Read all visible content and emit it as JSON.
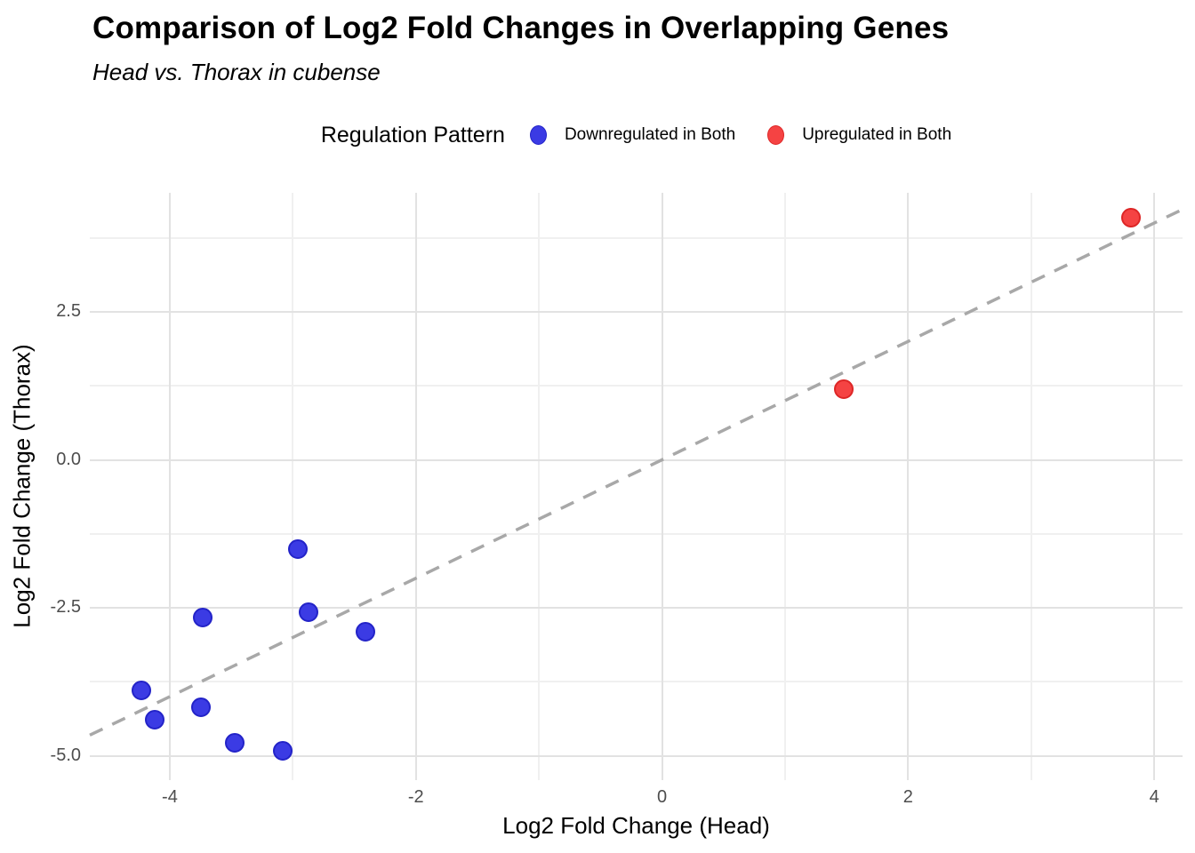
{
  "chart_data": {
    "type": "scatter",
    "title": "Comparison of Log2 Fold Changes in Overlapping Genes",
    "subtitle": "Head vs. Thorax in cubense",
    "xlabel": "Log2 Fold Change (Head)",
    "ylabel": "Log2 Fold Change (Thorax)",
    "xlim": [
      -4.65,
      4.23
    ],
    "ylim": [
      -5.41,
      4.51
    ],
    "x_major_ticks": [
      -4,
      -2,
      0,
      2,
      4
    ],
    "x_major_tick_labels": [
      "-4",
      "-2",
      "0",
      "2",
      "4"
    ],
    "x_minor_ticks": [
      -3,
      -1,
      1,
      3
    ],
    "y_major_ticks": [
      2.5,
      0.0,
      -2.5,
      -5.0
    ],
    "y_major_tick_labels": [
      "2.5",
      "0.0",
      "-2.5",
      "-5.0"
    ],
    "y_minor_ticks": [
      3.75,
      1.25,
      -1.25,
      -3.75
    ],
    "grid": true,
    "legend_position": "top",
    "legend_title": "Regulation Pattern",
    "reference_line": {
      "type": "identity",
      "slope": 1,
      "intercept": 0,
      "style": "dashed",
      "color": "#a8a8a8"
    },
    "series": [
      {
        "name": "Downregulated in Both",
        "color": "#3b3be4",
        "stroke_color": "#2323c8",
        "points": [
          [
            -2.96,
            -1.51
          ],
          [
            -3.73,
            -2.66
          ],
          [
            -2.87,
            -2.57
          ],
          [
            -2.41,
            -2.9
          ],
          [
            -4.23,
            -3.89
          ],
          [
            -3.75,
            -4.18
          ],
          [
            -4.12,
            -4.39
          ],
          [
            -3.47,
            -4.78
          ],
          [
            -3.08,
            -4.92
          ]
        ]
      },
      {
        "name": "Upregulated in Both",
        "color": "#f54343",
        "stroke_color": "#dd2626",
        "points": [
          [
            1.48,
            1.2
          ],
          [
            3.81,
            4.09
          ]
        ]
      }
    ]
  }
}
